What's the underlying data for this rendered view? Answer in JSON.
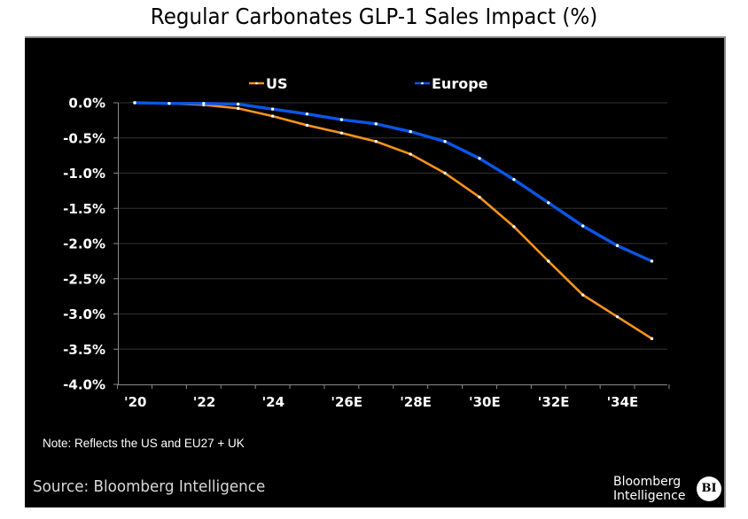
{
  "chart_data": {
    "type": "line",
    "title": "Regular Carbonates GLP-1 Sales Impact (%)",
    "xlabel": "",
    "ylabel": "",
    "x": [
      2020,
      2021,
      2022,
      2023,
      2024,
      2025,
      2026,
      2027,
      2028,
      2029,
      2030,
      2031,
      2032,
      2033,
      2034,
      2035
    ],
    "x_tick_labels": [
      "'20",
      "'22",
      "'24",
      "'26E",
      "'28E",
      "'30E",
      "'32E",
      "'34E"
    ],
    "y_tick_labels": [
      "0.0%",
      "-0.5%",
      "-1.0%",
      "-1.5%",
      "-2.0%",
      "-2.5%",
      "-3.0%",
      "-3.5%",
      "-4.0%"
    ],
    "ylim": [
      -4.0,
      0.0
    ],
    "grid": "horizontal",
    "legend_position": "top-center",
    "series": [
      {
        "name": "US",
        "color": "#f7941d",
        "values": [
          0.0,
          -0.01,
          -0.03,
          -0.08,
          -0.19,
          -0.32,
          -0.43,
          -0.55,
          -0.73,
          -1.0,
          -1.34,
          -1.76,
          -2.25,
          -2.73,
          -3.04,
          -3.35
        ]
      },
      {
        "name": "Europe",
        "color": "#0b56e8",
        "values": [
          0.0,
          -0.01,
          -0.01,
          -0.02,
          -0.09,
          -0.16,
          -0.24,
          -0.3,
          -0.41,
          -0.55,
          -0.79,
          -1.09,
          -1.42,
          -1.75,
          -2.03,
          -2.25
        ]
      }
    ]
  },
  "note": "Note: Reflects the US and EU27 + UK",
  "source": "Source: Bloomberg Intelligence",
  "brand": {
    "line1": "Bloomberg",
    "line2": "Intelligence",
    "logo": "BI"
  }
}
